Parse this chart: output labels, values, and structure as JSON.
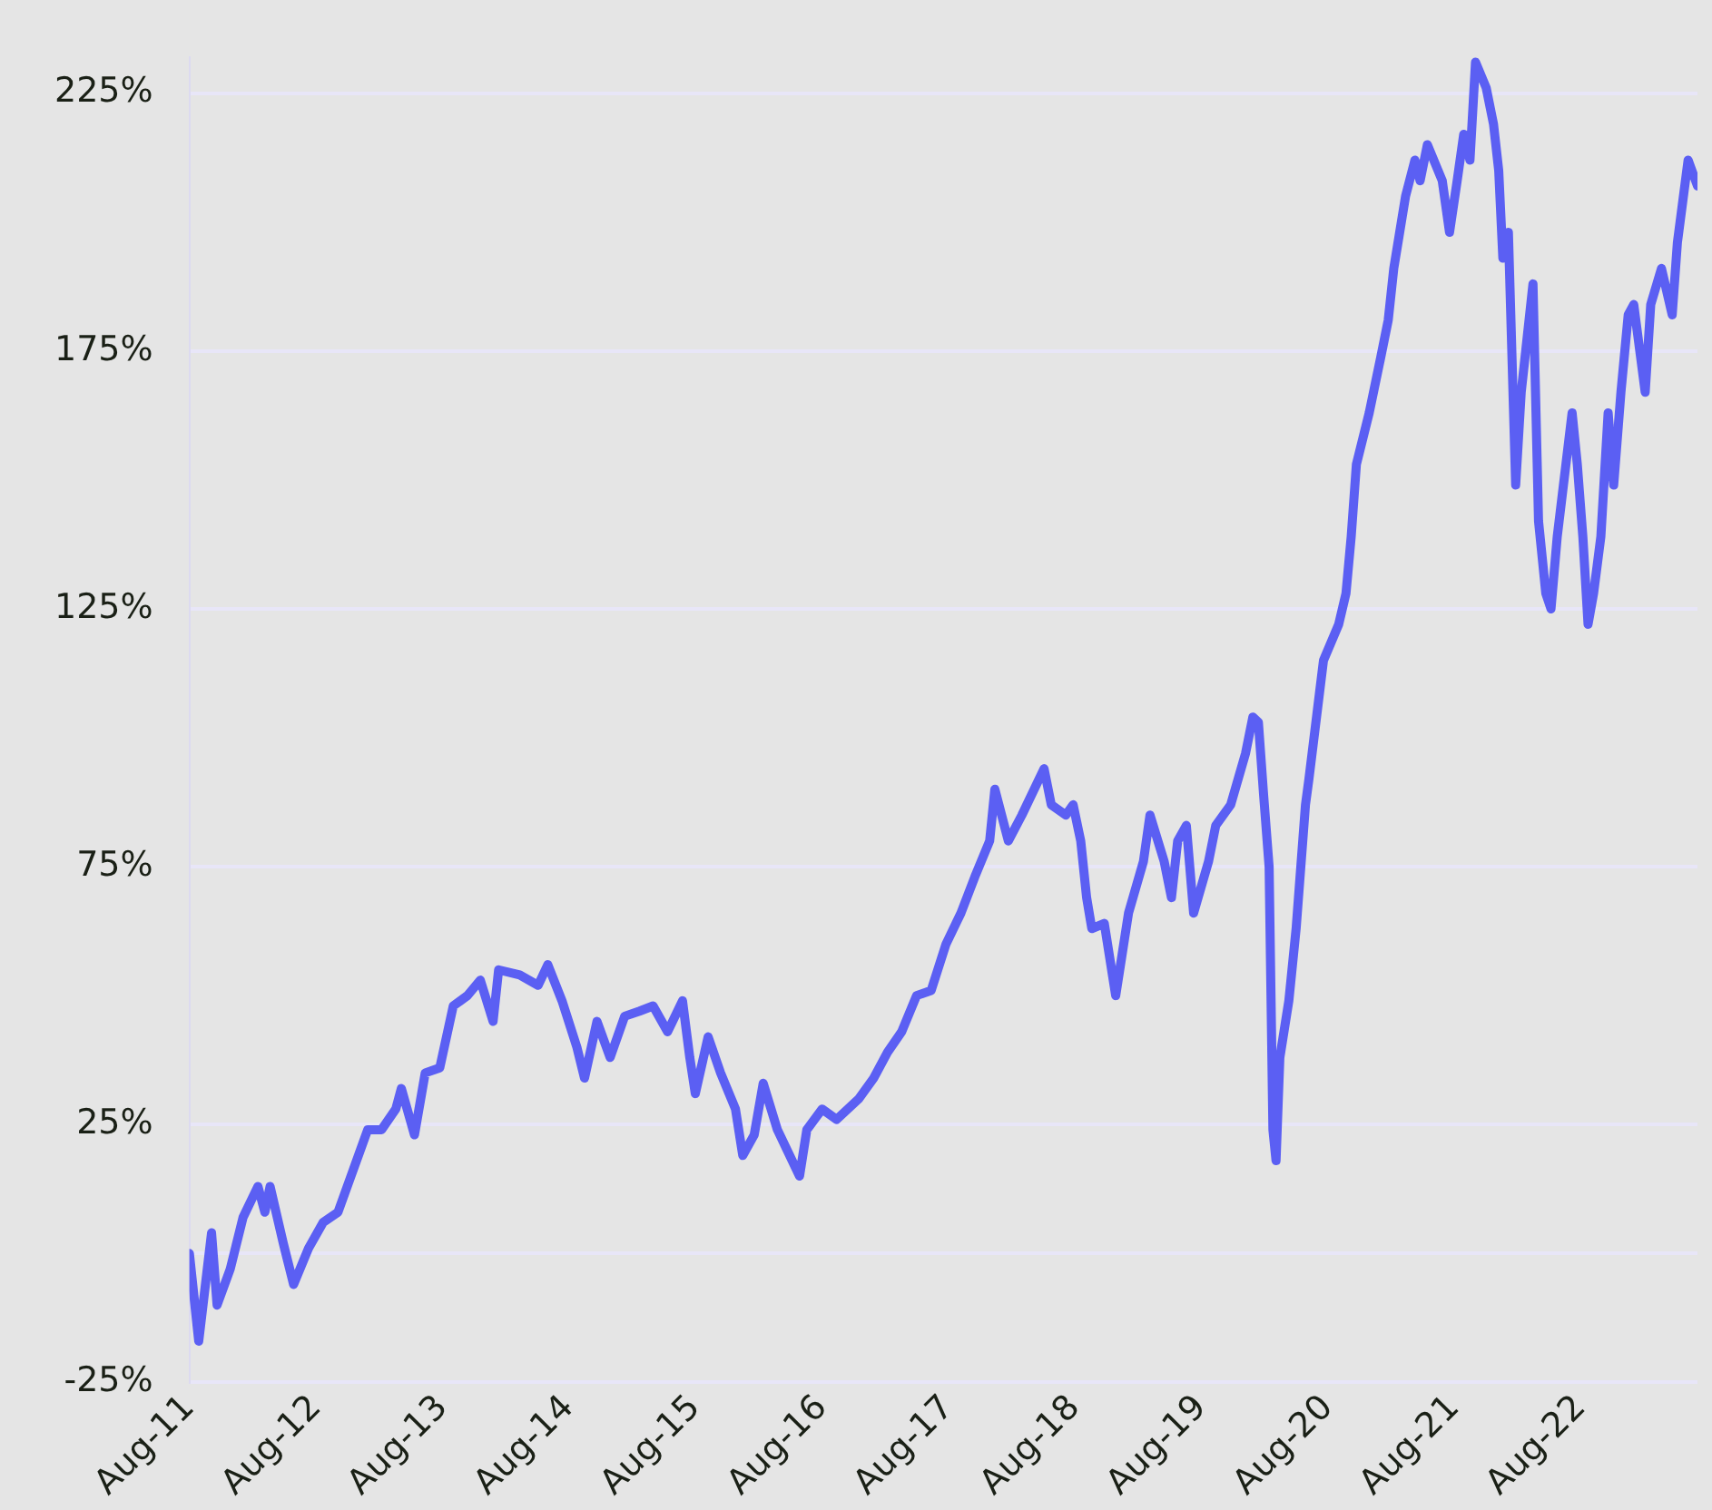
{
  "chart_data": {
    "type": "line",
    "grid": "y",
    "legend": false,
    "marker": "none",
    "line_style": "solid",
    "xlim": [
      "2011-08-01",
      "2023-07-04"
    ],
    "ylim": [
      -25,
      232
    ],
    "xticks": [
      {
        "value": "2011-08-01",
        "label": "Aug-11"
      },
      {
        "value": "2012-08-01",
        "label": "Aug-12"
      },
      {
        "value": "2013-08-01",
        "label": "Aug-13"
      },
      {
        "value": "2014-08-01",
        "label": "Aug-14"
      },
      {
        "value": "2015-08-01",
        "label": "Aug-15"
      },
      {
        "value": "2016-08-01",
        "label": "Aug-16"
      },
      {
        "value": "2017-08-01",
        "label": "Aug-17"
      },
      {
        "value": "2018-08-01",
        "label": "Aug-18"
      },
      {
        "value": "2019-08-01",
        "label": "Aug-19"
      },
      {
        "value": "2020-08-01",
        "label": "Aug-20"
      },
      {
        "value": "2021-08-01",
        "label": "Aug-21"
      },
      {
        "value": "2022-08-01",
        "label": "Aug-22"
      }
    ],
    "yticks": [
      {
        "value": -25,
        "label": "-25%"
      },
      {
        "value": 0,
        "label": null
      },
      {
        "value": 25,
        "label": "25%"
      },
      {
        "value": 75,
        "label": "75%"
      },
      {
        "value": 125,
        "label": "125%"
      },
      {
        "value": 175,
        "label": "175%"
      },
      {
        "value": 225,
        "label": "225%"
      }
    ],
    "x": [
      "2011-08-01",
      "2011-08-28",
      "2011-10-04",
      "2011-10-20",
      "2011-11-27",
      "2012-01-03",
      "2012-02-15",
      "2012-03-06",
      "2012-03-21",
      "2012-04-28",
      "2012-05-28",
      "2012-07-10",
      "2012-08-21",
      "2012-10-03",
      "2012-11-15",
      "2012-12-28",
      "2013-02-06",
      "2013-03-19",
      "2013-04-04",
      "2013-05-12",
      "2013-06-12",
      "2013-07-24",
      "2013-09-01",
      "2013-10-12",
      "2013-11-18",
      "2013-12-25",
      "2014-01-10",
      "2014-03-12",
      "2014-05-04",
      "2014-06-01",
      "2014-07-12",
      "2014-08-24",
      "2014-09-15",
      "2014-10-21",
      "2014-11-28",
      "2015-01-09",
      "2015-02-21",
      "2015-04-01",
      "2015-05-13",
      "2015-06-25",
      "2015-07-16",
      "2015-08-01",
      "2015-09-07",
      "2015-10-13",
      "2015-11-25",
      "2015-12-16",
      "2016-01-18",
      "2016-02-13",
      "2016-03-25",
      "2016-05-28",
      "2016-06-18",
      "2016-08-01",
      "2016-09-12",
      "2016-11-15",
      "2016-12-28",
      "2017-02-06",
      "2017-03-19",
      "2017-05-01",
      "2017-06-12",
      "2017-07-25",
      "2017-09-06",
      "2017-10-16",
      "2017-11-28",
      "2017-12-13",
      "2018-01-21",
      "2018-03-01",
      "2018-05-04",
      "2018-05-25",
      "2018-07-06",
      "2018-07-27",
      "2018-08-18",
      "2018-09-04",
      "2018-09-19",
      "2018-10-25",
      "2018-11-27",
      "2019-01-03",
      "2019-02-15",
      "2019-03-06",
      "2019-04-16",
      "2019-05-07",
      "2019-05-25",
      "2019-06-19",
      "2019-07-10",
      "2019-08-22",
      "2019-09-12",
      "2019-10-25",
      "2019-12-07",
      "2019-12-28",
      "2020-01-13",
      "2020-01-28",
      "2020-02-13",
      "2020-02-24",
      "2020-03-04",
      "2020-03-15",
      "2020-04-10",
      "2020-05-01",
      "2020-05-28",
      "2020-06-07",
      "2020-07-19",
      "2020-09-01",
      "2020-09-22",
      "2020-10-07",
      "2020-10-22",
      "2020-11-28",
      "2021-01-01",
      "2021-01-22",
      "2021-02-07",
      "2021-03-13",
      "2021-04-09",
      "2021-04-24",
      "2021-05-15",
      "2021-06-27",
      "2021-07-18",
      "2021-08-09",
      "2021-08-28",
      "2021-09-15",
      "2021-10-01",
      "2021-11-01",
      "2021-11-22",
      "2021-12-07",
      "2021-12-19",
      "2022-01-04",
      "2022-01-25",
      "2022-02-10",
      "2022-03-16",
      "2022-04-01",
      "2022-04-22",
      "2022-05-07",
      "2022-05-25",
      "2022-07-07",
      "2022-07-22",
      "2022-08-07",
      "2022-08-22",
      "2022-09-07",
      "2022-09-28",
      "2022-10-19",
      "2022-11-04",
      "2022-11-25",
      "2022-12-16",
      "2023-01-01",
      "2023-02-03",
      "2023-02-19",
      "2023-03-22",
      "2023-04-22",
      "2023-05-07",
      "2023-06-07",
      "2023-07-04"
    ],
    "series": [
      {
        "color": "#5b5ff3",
        "values": [
          0,
          -17,
          4,
          -10,
          -3,
          7,
          13,
          8,
          13,
          2,
          -6,
          1,
          6,
          8,
          16,
          24,
          24,
          28,
          32,
          23,
          35,
          36,
          48,
          50,
          53,
          45,
          55,
          54,
          52,
          56,
          49,
          40,
          34,
          45,
          38,
          46,
          47,
          48,
          43,
          49,
          38,
          31,
          42,
          35,
          28,
          19,
          23,
          33,
          24,
          15,
          24,
          28,
          26,
          30,
          34,
          39,
          43,
          50,
          51,
          60,
          66,
          73,
          80,
          90,
          80,
          85,
          94,
          87,
          85,
          87,
          80,
          69,
          63,
          64,
          50,
          66,
          76,
          85,
          76,
          69,
          80,
          83,
          66,
          76,
          83,
          87,
          97,
          104,
          103,
          89,
          75,
          24,
          18,
          38,
          49,
          63,
          87,
          92,
          115,
          122,
          128,
          139,
          153,
          163,
          174,
          181,
          191,
          205,
          212,
          208,
          215,
          208,
          198,
          208,
          217,
          212,
          231,
          226,
          219,
          210,
          193,
          198,
          149,
          167,
          188,
          142,
          128,
          125,
          139,
          163,
          153,
          139,
          122,
          128,
          139,
          163,
          149,
          167,
          182,
          184,
          167,
          184,
          191,
          182,
          196,
          212,
          207
        ]
      }
    ]
  }
}
